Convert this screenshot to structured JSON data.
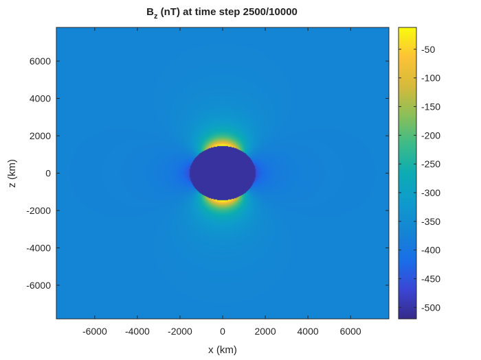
{
  "chart_data": {
    "type": "heatmap",
    "title_main": "B",
    "title_sub": "z",
    "title_rest": " (nT) at time step 2500/10000",
    "xlabel": "x (km)",
    "ylabel": "z (km)",
    "xlim": [
      -7800,
      7800
    ],
    "ylim": [
      -7800,
      7800
    ],
    "xticks": [
      -6000,
      -4000,
      -2000,
      0,
      2000,
      4000,
      6000
    ],
    "yticks": [
      -6000,
      -4000,
      -2000,
      0,
      2000,
      4000,
      6000
    ],
    "grid": false,
    "colorbar": {
      "label": "",
      "clim": [
        -520,
        -12
      ],
      "ticks": [
        -50,
        -100,
        -150,
        -200,
        -250,
        -300,
        -350,
        -400,
        -450,
        -500
      ],
      "colormap": "parula"
    },
    "field": {
      "description_values": {
        "background": -370,
        "sphere_interior": -505,
        "pole_peak": -15,
        "equator_minimum": -470
      },
      "sphere_radius_x_km": 1550,
      "sphere_radius_z_km": 1450
    }
  }
}
